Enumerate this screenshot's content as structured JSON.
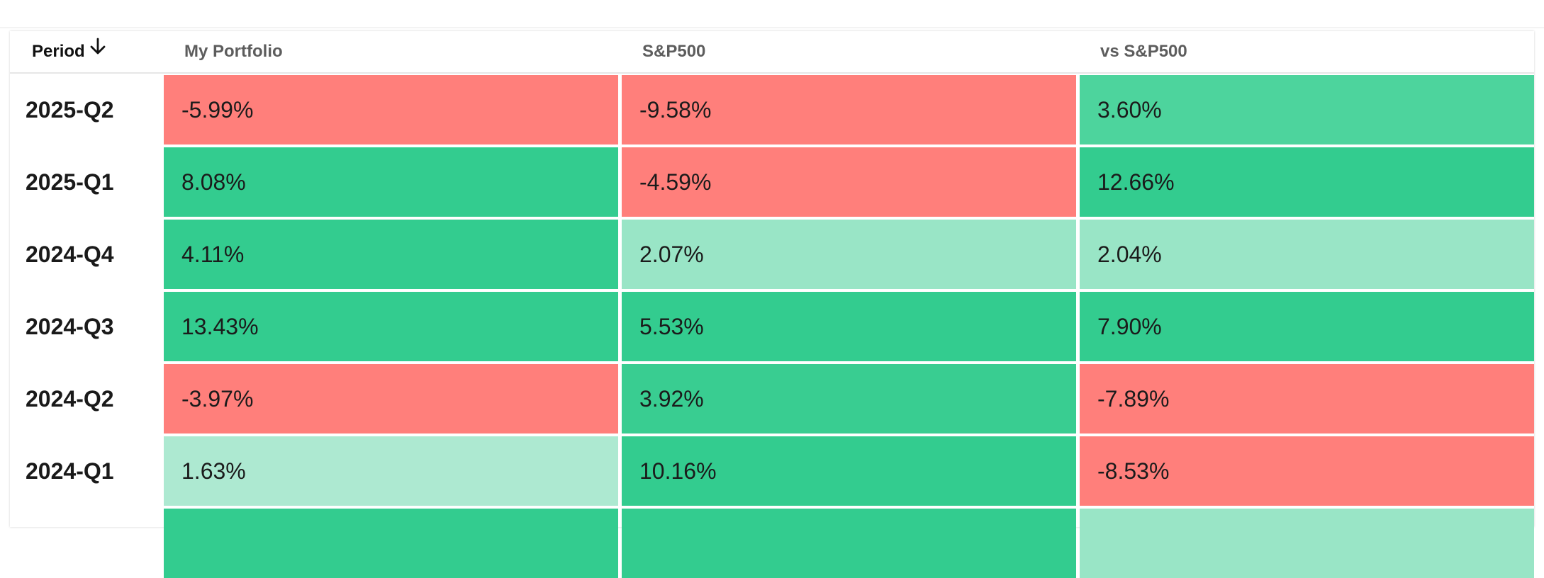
{
  "columns": {
    "period": "Period",
    "portfolio": "My Portfolio",
    "sp500": "S&P500",
    "vs": "vs S&P500"
  },
  "colors": {
    "positive_strong": "#33cc8f",
    "positive_medium": "#4dd49d",
    "positive_light": "#99e5c6",
    "positive_lighter": "#ade9d1",
    "negative": "#ff7f7b"
  },
  "rows": [
    {
      "period": "2025-Q2",
      "portfolio": "-5.99%",
      "sp500": "-9.58%",
      "vs": "3.60%"
    },
    {
      "period": "2025-Q1",
      "portfolio": "8.08%",
      "sp500": "-4.59%",
      "vs": "12.66%"
    },
    {
      "period": "2024-Q4",
      "portfolio": "4.11%",
      "sp500": "2.07%",
      "vs": "2.04%"
    },
    {
      "period": "2024-Q3",
      "portfolio": "13.43%",
      "sp500": "5.53%",
      "vs": "7.90%"
    },
    {
      "period": "2024-Q2",
      "portfolio": "-3.97%",
      "sp500": "3.92%",
      "vs": "-7.89%"
    },
    {
      "period": "2024-Q1",
      "portfolio": "1.63%",
      "sp500": "10.16%",
      "vs": "-8.53%"
    },
    {
      "period": "",
      "portfolio": "",
      "sp500": "",
      "vs": ""
    }
  ]
}
